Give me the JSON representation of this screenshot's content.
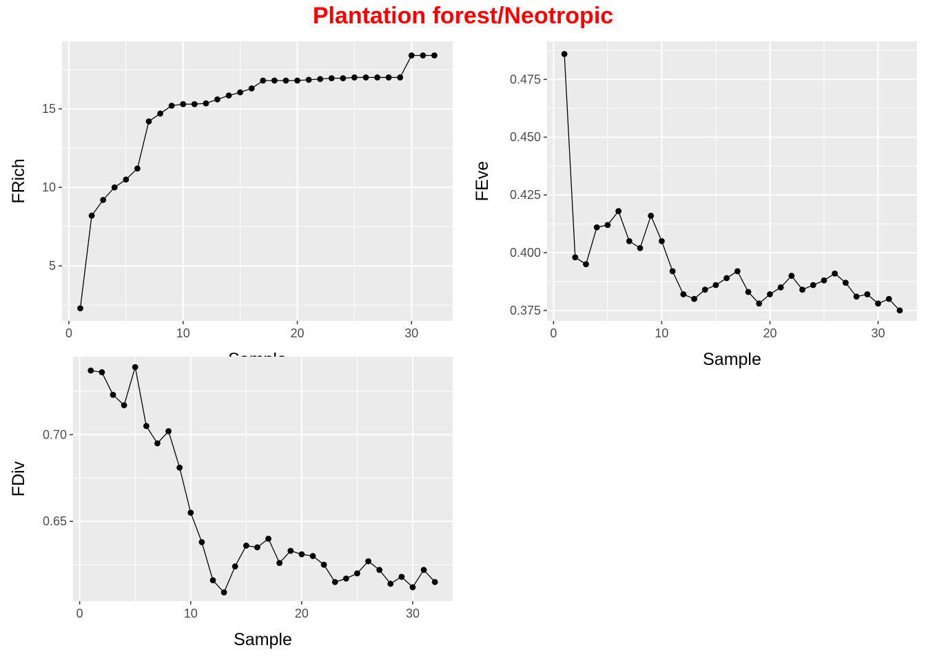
{
  "title": "Plantation forest/Neotropic",
  "colors": {
    "title": "#ff0000",
    "panel_bg": "#ebebeb",
    "grid": "#ffffff",
    "series": "#000000",
    "tick_text": "#4d4d4d"
  },
  "chart_data": [
    {
      "type": "line",
      "markers": "points",
      "grid": true,
      "xlabel": "Sample",
      "ylabel": "FRich",
      "xlim": [
        -0.6,
        33.6
      ],
      "ylim": [
        1.5,
        19.3
      ],
      "xticks": [
        0,
        10,
        20,
        30
      ],
      "yticks": [
        5,
        10,
        15
      ],
      "x": [
        1,
        2,
        3,
        4,
        5,
        6,
        7,
        8,
        9,
        10,
        11,
        12,
        13,
        14,
        15,
        16,
        17,
        18,
        19,
        20,
        21,
        22,
        23,
        24,
        25,
        26,
        27,
        28,
        29,
        30,
        31,
        32
      ],
      "values": [
        2.3,
        8.2,
        9.2,
        10.0,
        10.5,
        11.2,
        14.2,
        14.7,
        15.2,
        15.3,
        15.3,
        15.35,
        15.6,
        15.85,
        16.05,
        16.3,
        16.8,
        16.8,
        16.8,
        16.8,
        16.85,
        16.9,
        16.95,
        16.95,
        17.0,
        17.0,
        17.0,
        17.0,
        17.0,
        18.4,
        18.4,
        18.4
      ]
    },
    {
      "type": "line",
      "markers": "points",
      "grid": true,
      "xlabel": "Sample",
      "ylabel": "FEve",
      "xlim": [
        -0.6,
        33.6
      ],
      "ylim": [
        0.3705,
        0.4915
      ],
      "xticks": [
        0,
        10,
        20,
        30
      ],
      "yticks": [
        0.375,
        0.4,
        0.425,
        0.45,
        0.475
      ],
      "ytick_labels": [
        "0.375",
        "0.400",
        "0.425",
        "0.450",
        "0.475"
      ],
      "x": [
        1,
        2,
        3,
        4,
        5,
        6,
        7,
        8,
        9,
        10,
        11,
        12,
        13,
        14,
        15,
        16,
        17,
        18,
        19,
        20,
        21,
        22,
        23,
        24,
        25,
        26,
        27,
        28,
        29,
        30,
        31,
        32
      ],
      "values": [
        0.486,
        0.398,
        0.395,
        0.411,
        0.412,
        0.418,
        0.405,
        0.402,
        0.416,
        0.405,
        0.392,
        0.382,
        0.38,
        0.384,
        0.386,
        0.389,
        0.392,
        0.383,
        0.378,
        0.382,
        0.385,
        0.39,
        0.384,
        0.386,
        0.388,
        0.391,
        0.387,
        0.381,
        0.382,
        0.378,
        0.38,
        0.375
      ]
    },
    {
      "type": "line",
      "markers": "points",
      "grid": true,
      "xlabel": "Sample",
      "ylabel": "FDiv",
      "xlim": [
        -0.6,
        33.6
      ],
      "ylim": [
        0.604,
        0.745
      ],
      "xticks": [
        0,
        10,
        20,
        30
      ],
      "yticks": [
        0.65,
        0.7
      ],
      "ytick_labels": [
        "0.65",
        "0.70"
      ],
      "x": [
        1,
        2,
        3,
        4,
        5,
        6,
        7,
        8,
        9,
        10,
        11,
        12,
        13,
        14,
        15,
        16,
        17,
        18,
        19,
        20,
        21,
        22,
        23,
        24,
        25,
        26,
        27,
        28,
        29,
        30,
        31,
        32
      ],
      "values": [
        0.737,
        0.736,
        0.723,
        0.717,
        0.739,
        0.705,
        0.695,
        0.702,
        0.681,
        0.655,
        0.638,
        0.616,
        0.609,
        0.624,
        0.636,
        0.635,
        0.64,
        0.626,
        0.633,
        0.631,
        0.63,
        0.625,
        0.615,
        0.617,
        0.62,
        0.627,
        0.622,
        0.614,
        0.618,
        0.612,
        0.622,
        0.615
      ]
    }
  ]
}
